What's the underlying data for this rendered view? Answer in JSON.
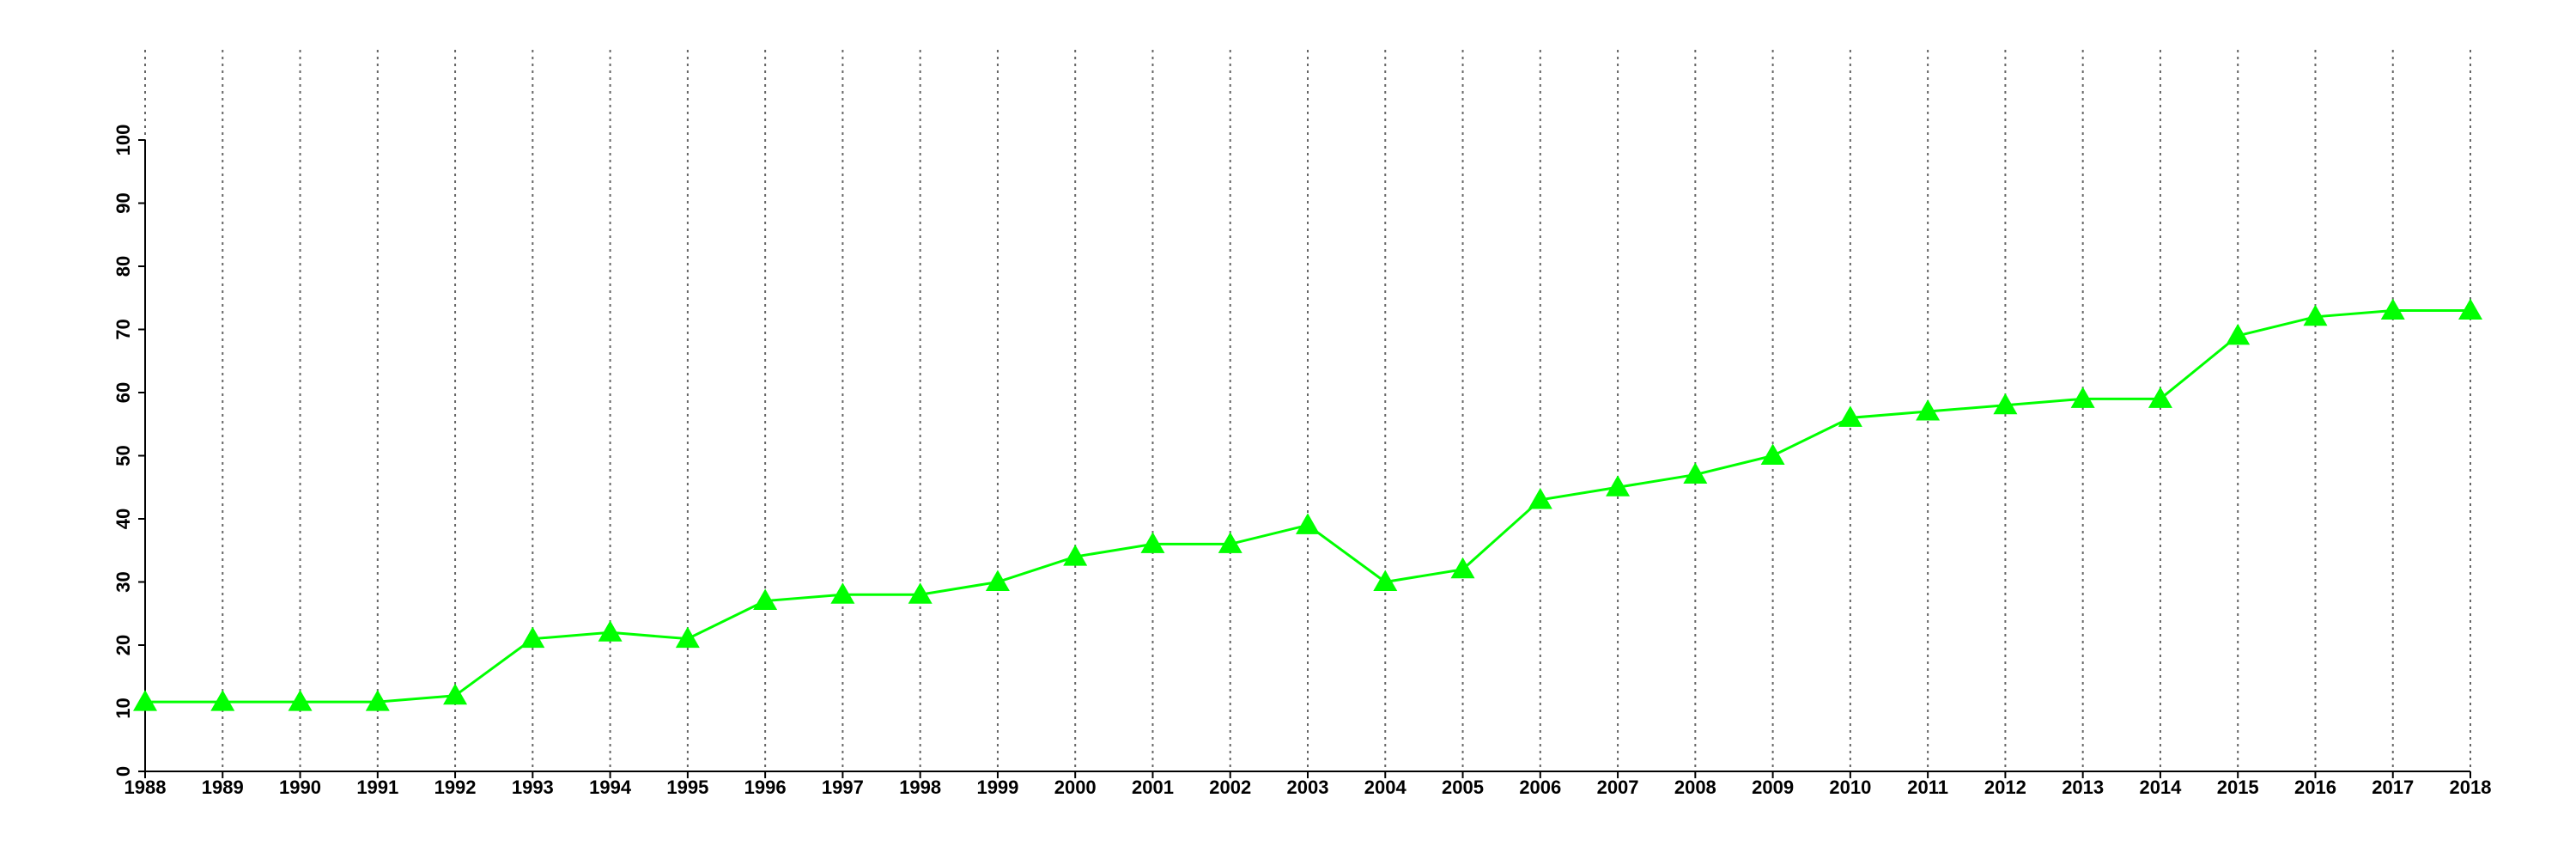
{
  "chart_data": {
    "type": "line",
    "x": [
      1988,
      1989,
      1990,
      1991,
      1992,
      1993,
      1994,
      1995,
      1996,
      1997,
      1998,
      1999,
      2000,
      2001,
      2002,
      2003,
      2004,
      2005,
      2006,
      2007,
      2008,
      2009,
      2010,
      2011,
      2012,
      2013,
      2014,
      2015,
      2016,
      2017,
      2018
    ],
    "series": [
      {
        "color": "#00ff00",
        "values": [
          11,
          11,
          11,
          11,
          12,
          21,
          22,
          21,
          27,
          28,
          28,
          30,
          34,
          36,
          36,
          39,
          30,
          32,
          43,
          45,
          47,
          50,
          56,
          57,
          58,
          59,
          59,
          69,
          72,
          73,
          73
        ]
      }
    ],
    "xlim": [
      1988,
      2018
    ],
    "xticks": [
      1988,
      1989,
      1990,
      1991,
      1992,
      1993,
      1994,
      1995,
      1996,
      1997,
      1998,
      1999,
      2000,
      2001,
      2002,
      2003,
      2004,
      2005,
      2006,
      2007,
      2008,
      2009,
      2010,
      2011,
      2012,
      2013,
      2014,
      2015,
      2016,
      2017,
      2018
    ],
    "ylim": [
      0,
      100
    ],
    "yticks": [
      0,
      10,
      20,
      30,
      40,
      50,
      60,
      70,
      80,
      90,
      100
    ],
    "grid": "x"
  }
}
